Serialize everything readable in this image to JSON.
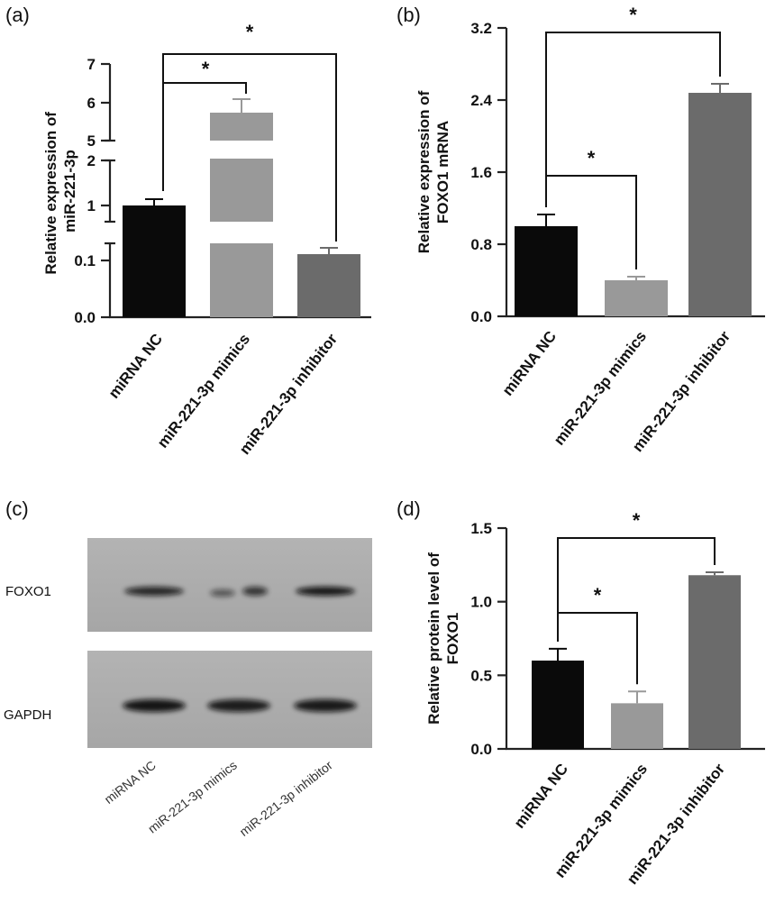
{
  "chart_data": [
    {
      "panel": "(a)",
      "type": "bar",
      "categories": [
        "miRNA NC",
        "miR-221-3p mimics",
        "miR-221-3p inhibitor"
      ],
      "values": [
        1.0,
        5.75,
        0.11
      ],
      "errors": [
        0.1,
        0.35,
        0.02
      ],
      "ylabel": "Relative expression of miR-221-3p",
      "ticks": [
        "0.0",
        "0.1",
        "1",
        "2",
        "5",
        "6",
        "7"
      ],
      "broken_axis": true,
      "bar_colors": [
        "#0a0a0a",
        "#999999",
        "#6b6b6b"
      ],
      "significance": [
        {
          "from": "miRNA NC",
          "to": "miR-221-3p mimics",
          "label": "*"
        },
        {
          "from": "miRNA NC",
          "to": "miR-221-3p inhibitor",
          "label": "*"
        }
      ]
    },
    {
      "panel": "(b)",
      "type": "bar",
      "categories": [
        "miRNA NC",
        "miR-221-3p mimics",
        "miR-221-3p inhibitor"
      ],
      "values": [
        1.0,
        0.4,
        2.48
      ],
      "errors": [
        0.13,
        0.04,
        0.1
      ],
      "ylabel": "Relative expression of FOXO1 mRNA",
      "ylim": [
        0,
        3.2
      ],
      "ticks": [
        "0.0",
        "0.8",
        "1.6",
        "2.4",
        "3.2"
      ],
      "bar_colors": [
        "#0a0a0a",
        "#999999",
        "#6b6b6b"
      ],
      "significance": [
        {
          "from": "miRNA NC",
          "to": "miR-221-3p mimics",
          "label": "*"
        },
        {
          "from": "miRNA NC",
          "to": "miR-221-3p inhibitor",
          "label": "*"
        }
      ]
    },
    {
      "panel": "(d)",
      "type": "bar",
      "categories": [
        "miRNA NC",
        "miR-221-3p mimics",
        "miR-221-3p inhibitor"
      ],
      "values": [
        0.6,
        0.31,
        1.18
      ],
      "errors": [
        0.08,
        0.08,
        0.02
      ],
      "ylabel": "Relative protein level of FOXO1",
      "ylim": [
        0,
        1.5
      ],
      "ticks": [
        "0.0",
        "0.5",
        "1.0",
        "1.5"
      ],
      "bar_colors": [
        "#0a0a0a",
        "#999999",
        "#6b6b6b"
      ],
      "significance": [
        {
          "from": "miRNA NC",
          "to": "miR-221-3p mimics",
          "label": "*"
        },
        {
          "from": "miRNA NC",
          "to": "miR-221-3p inhibitor",
          "label": "*"
        }
      ]
    }
  ],
  "blot": {
    "panel": "(c)",
    "rows": [
      "FOXO1",
      "GAPDH"
    ],
    "lanes": [
      "miRNA NC",
      "miR-221-3p mimics",
      "miR-221-3p inhibitor"
    ],
    "band_intensity": {
      "FOXO1": [
        0.85,
        0.35,
        0.95
      ],
      "GAPDH": [
        0.95,
        0.9,
        0.92
      ]
    }
  }
}
